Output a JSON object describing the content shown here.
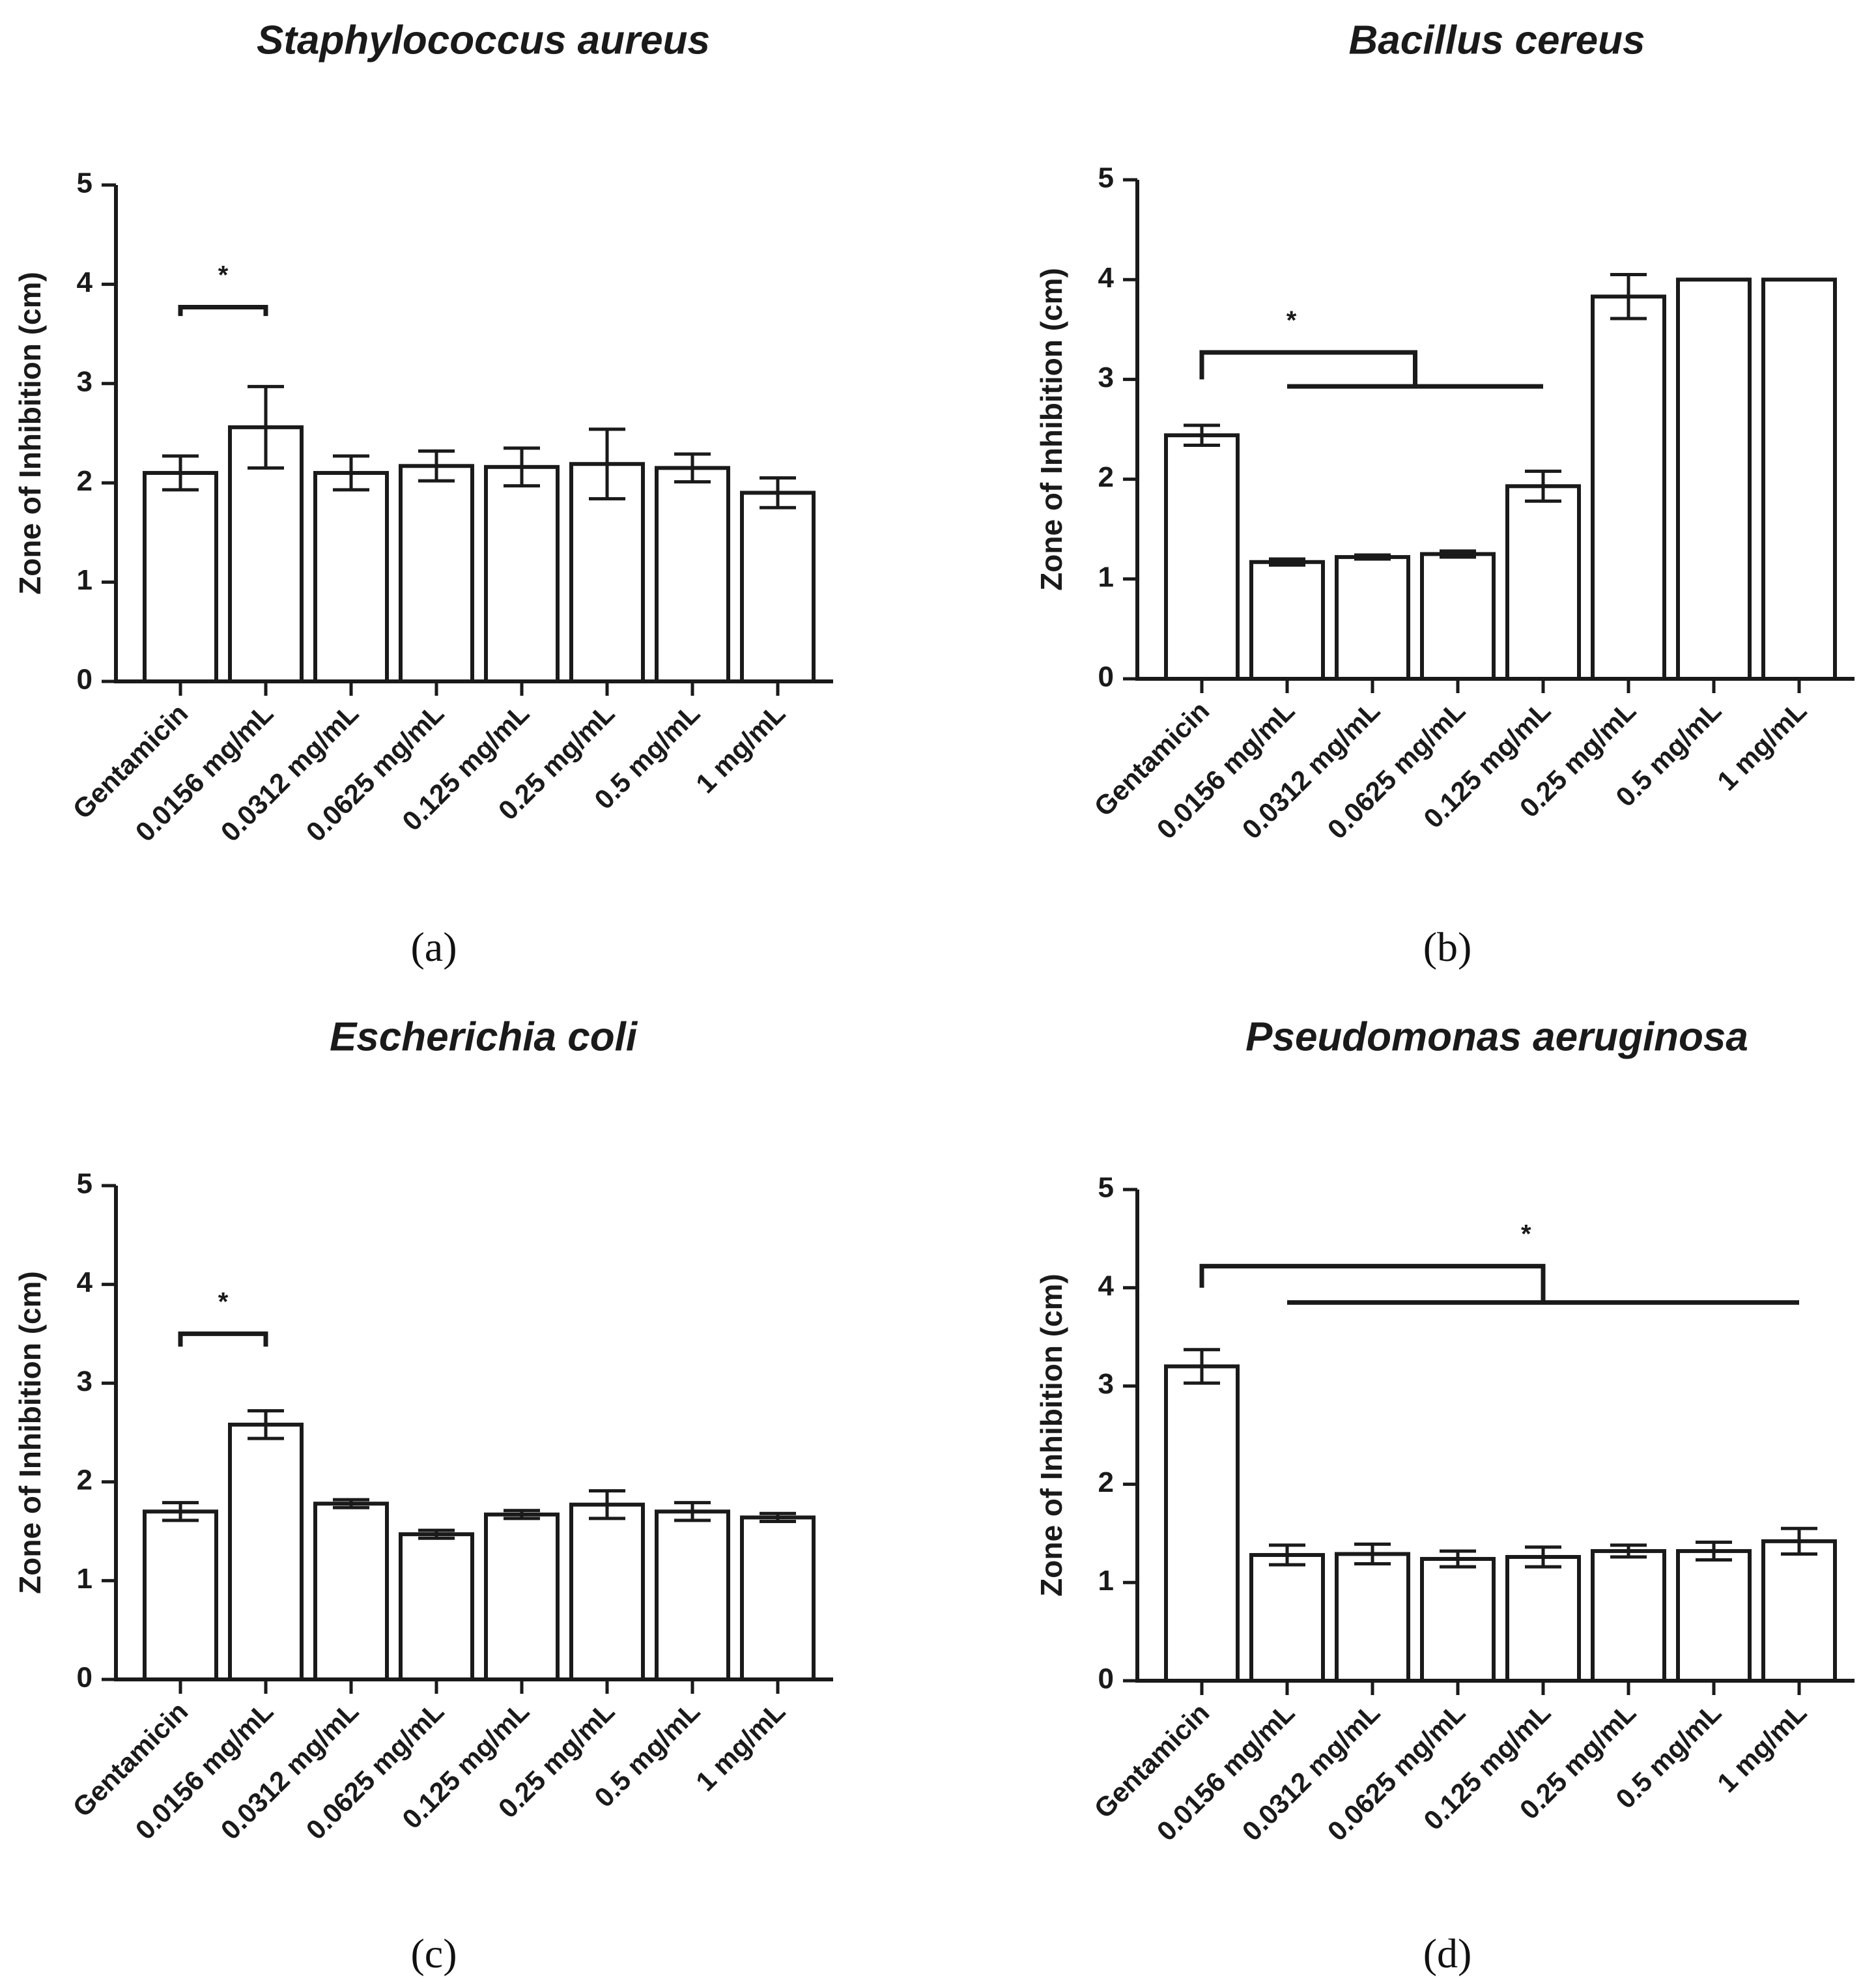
{
  "figure": {
    "bar_fill": "#ffffff",
    "stroke_color": "#1a1a1a"
  },
  "chart_data": [
    {
      "type": "bar",
      "panel": "(a)",
      "title": "Staphylococcus aureus",
      "ylabel": "Zone of Inhibition (cm)",
      "xlabel": "",
      "ylim": [
        0,
        5
      ],
      "yticks": [
        "0",
        "1",
        "2",
        "3",
        "4",
        "5"
      ],
      "categories": [
        "Gentamicin",
        "0.0156 mg/mL",
        "0.0312 mg/mL",
        "0.0625 mg/mL",
        "0.125 mg/mL",
        "0.25 mg/mL",
        "0.5 mg/mL",
        "1 mg/mL"
      ],
      "values": [
        2.1,
        2.56,
        2.1,
        2.17,
        2.16,
        2.19,
        2.15,
        1.9
      ],
      "errors": [
        0.17,
        0.41,
        0.17,
        0.15,
        0.19,
        0.35,
        0.14,
        0.15
      ],
      "significance": {
        "label": "*",
        "type": "pair",
        "left": 0,
        "right": 1,
        "level": 3.77,
        "tick_to": 3.68
      }
    },
    {
      "type": "bar",
      "panel": "(b)",
      "title": "Bacillus cereus",
      "ylabel": "Zone of Inhibition (cm)",
      "xlabel": "",
      "ylim": [
        0,
        5
      ],
      "yticks": [
        "0",
        "1",
        "2",
        "3",
        "4",
        "5"
      ],
      "categories": [
        "Gentamicin",
        "0.0156 mg/mL",
        "0.0312 mg/mL",
        "0.0625 mg/mL",
        "0.125 mg/mL",
        "0.25 mg/mL",
        "0.5 mg/mL",
        "1 mg/mL"
      ],
      "values": [
        2.44,
        1.17,
        1.22,
        1.25,
        1.93,
        3.83,
        4.0,
        4.0
      ],
      "errors": [
        0.1,
        0.03,
        0.02,
        0.03,
        0.15,
        0.22,
        0,
        0
      ],
      "significance": {
        "label": "*",
        "type": "group",
        "left": 0,
        "mid": 2.5,
        "from": 1,
        "to": 4,
        "level": 3.27,
        "tick_to": 3.0,
        "level2": 2.93
      }
    },
    {
      "type": "bar",
      "panel": "(c)",
      "title": "Escherichia coli",
      "ylabel": "Zone of Inhibition (cm)",
      "xlabel": "",
      "ylim": [
        0,
        5
      ],
      "yticks": [
        "0",
        "1",
        "2",
        "3",
        "4",
        "5"
      ],
      "categories": [
        "Gentamicin",
        "0.0156 mg/mL",
        "0.0312 mg/mL",
        "0.0625 mg/mL",
        "0.125 mg/mL",
        "0.25 mg/mL",
        "0.5 mg/mL",
        "1 mg/mL"
      ],
      "values": [
        1.7,
        2.58,
        1.78,
        1.47,
        1.67,
        1.77,
        1.7,
        1.64
      ],
      "errors": [
        0.09,
        0.14,
        0.04,
        0.04,
        0.04,
        0.14,
        0.09,
        0.04
      ],
      "significance": {
        "label": "*",
        "type": "pair",
        "left": 0,
        "right": 1,
        "level": 3.5,
        "tick_to": 3.37
      }
    },
    {
      "type": "bar",
      "panel": "(d)",
      "title": "Pseudomonas aeruginosa",
      "ylabel": "Zone of Inhibition (cm)",
      "xlabel": "",
      "ylim": [
        0,
        5
      ],
      "yticks": [
        "0",
        "1",
        "2",
        "3",
        "4",
        "5"
      ],
      "categories": [
        "Gentamicin",
        "0.0156 mg/mL",
        "0.0312 mg/mL",
        "0.0625 mg/mL",
        "0.125 mg/mL",
        "0.25 mg/mL",
        "0.5 mg/mL",
        "1 mg/mL"
      ],
      "values": [
        3.2,
        1.28,
        1.29,
        1.24,
        1.26,
        1.32,
        1.32,
        1.42
      ],
      "errors": [
        0.17,
        0.1,
        0.1,
        0.08,
        0.1,
        0.06,
        0.09,
        0.13
      ],
      "significance": {
        "label": "*",
        "type": "group",
        "left": 0,
        "mid": 3.85,
        "from": 1,
        "to": 7,
        "level": 4.22,
        "tick_to": 4.0,
        "level2": 3.85
      }
    }
  ]
}
